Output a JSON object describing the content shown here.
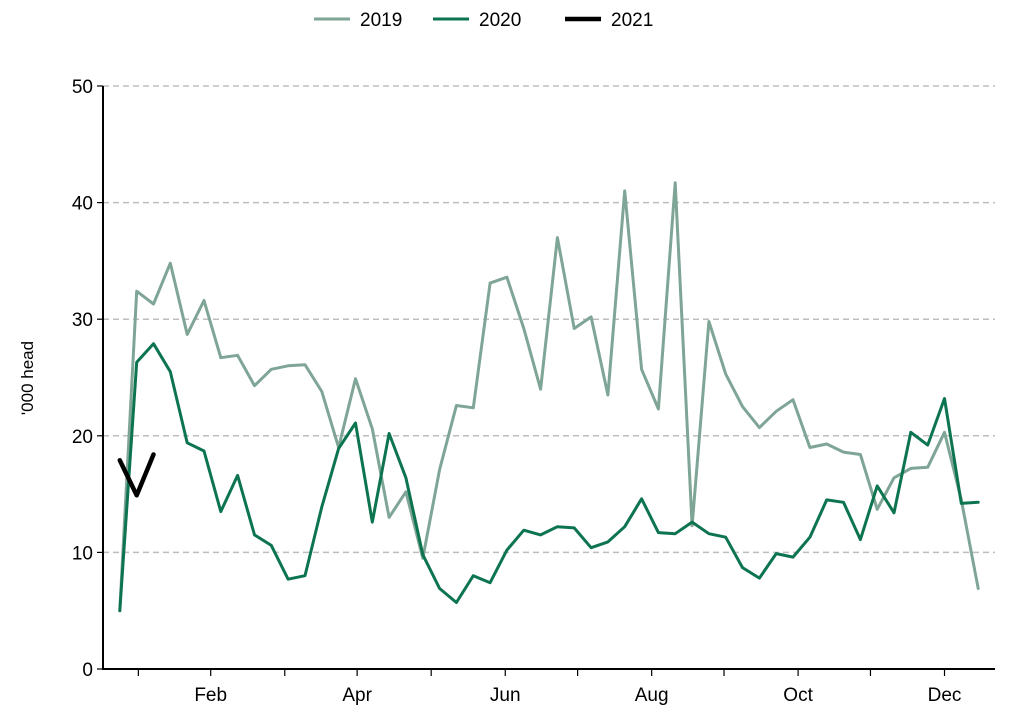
{
  "chart_data": {
    "type": "line",
    "title": "",
    "xlabel": "",
    "ylabel": "'000 head",
    "ylim": [
      0,
      50
    ],
    "yticks": [
      0,
      10,
      20,
      30,
      40,
      50
    ],
    "grid": "horizontal dashed",
    "legend_position": "top-center",
    "x_unit": "week",
    "xlim": [
      0,
      53
    ],
    "month_tick_weeks": [
      2.1,
      6.4,
      10.8,
      15.1,
      19.5,
      23.9,
      28.2,
      32.6,
      36.9,
      41.3,
      45.6,
      50.0
    ],
    "month_labels": [
      {
        "week": 6.4,
        "label": "Feb"
      },
      {
        "week": 15.1,
        "label": "Apr"
      },
      {
        "week": 23.9,
        "label": "Jun"
      },
      {
        "week": 32.6,
        "label": "Aug"
      },
      {
        "week": 41.3,
        "label": "Oct"
      },
      {
        "week": 50.0,
        "label": "Dec"
      }
    ],
    "series": [
      {
        "name": "2019",
        "color": "#7fa596",
        "width": 3,
        "start_week": 1,
        "values": [
          5.0,
          32.4,
          31.3,
          34.8,
          28.7,
          31.6,
          26.7,
          26.9,
          24.3,
          25.7,
          26.0,
          26.1,
          23.8,
          19.0,
          24.9,
          20.6,
          13.0,
          15.2,
          9.5,
          17.1,
          22.6,
          22.4,
          33.1,
          33.6,
          29.2,
          24.0,
          37.0,
          29.2,
          30.2,
          23.5,
          41.0,
          25.7,
          22.3,
          41.7,
          12.3,
          29.8,
          25.3,
          22.5,
          20.7,
          22.1,
          23.1,
          19.0,
          19.3,
          18.6,
          18.4,
          13.7,
          16.4,
          17.2,
          17.3,
          20.3,
          14.5,
          6.9
        ]
      },
      {
        "name": "2020",
        "color": "#0d7450",
        "width": 3,
        "start_week": 1,
        "values": [
          5.0,
          26.3,
          27.9,
          25.5,
          19.4,
          18.7,
          13.5,
          16.6,
          11.5,
          10.6,
          7.7,
          8.0,
          13.9,
          18.9,
          21.1,
          12.6,
          20.2,
          16.4,
          9.8,
          6.9,
          5.7,
          8.0,
          7.4,
          10.2,
          11.9,
          11.5,
          12.2,
          12.1,
          10.4,
          10.9,
          12.2,
          14.6,
          11.7,
          11.6,
          12.6,
          11.6,
          11.3,
          8.7,
          7.8,
          9.9,
          9.6,
          11.3,
          14.5,
          14.3,
          11.1,
          15.7,
          13.4,
          20.3,
          19.2,
          23.2,
          14.2,
          14.3
        ]
      },
      {
        "name": "2021",
        "color": "#000000",
        "width": 4.5,
        "start_week": 1,
        "values": [
          17.9,
          14.9,
          18.4
        ]
      }
    ]
  }
}
